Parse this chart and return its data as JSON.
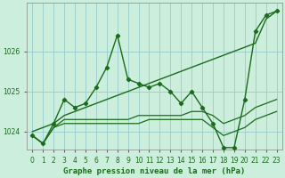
{
  "title": "Graphe pression niveau de la mer (hPa)",
  "background_color": "#cceedd",
  "grid_color": "#99cccc",
  "line_color": "#1a6b1a",
  "hours": [
    0,
    1,
    2,
    3,
    4,
    5,
    6,
    7,
    8,
    9,
    10,
    11,
    12,
    13,
    14,
    15,
    16,
    17,
    18,
    19,
    20,
    21,
    22,
    23
  ],
  "line_zigzag": [
    1023.9,
    1023.7,
    1024.2,
    1024.8,
    1024.6,
    1024.7,
    1025.1,
    1025.6,
    1026.4,
    1025.3,
    1025.2,
    1025.1,
    1025.2,
    1025.0,
    1024.7,
    1025.0,
    1024.6,
    1024.2,
    1023.6,
    1023.6,
    1024.8,
    1026.5,
    1026.9,
    1027.0
  ],
  "line_straight": [
    1024.0,
    1024.1,
    1024.2,
    1024.4,
    1024.5,
    1024.6,
    1024.7,
    1024.8,
    1024.9,
    1025.0,
    1025.1,
    1025.2,
    1025.3,
    1025.4,
    1025.5,
    1025.6,
    1025.7,
    1025.8,
    1025.9,
    1026.0,
    1026.1,
    1026.2,
    1026.8,
    1027.0
  ],
  "line_flat1": [
    1023.9,
    1023.7,
    1024.1,
    1024.2,
    1024.2,
    1024.2,
    1024.2,
    1024.2,
    1024.2,
    1024.2,
    1024.2,
    1024.3,
    1024.3,
    1024.3,
    1024.3,
    1024.3,
    1024.3,
    1024.1,
    1023.9,
    1024.0,
    1024.1,
    1024.3,
    1024.4,
    1024.5
  ],
  "line_flat2": [
    1023.9,
    1023.7,
    1024.1,
    1024.3,
    1024.3,
    1024.3,
    1024.3,
    1024.3,
    1024.3,
    1024.3,
    1024.4,
    1024.4,
    1024.4,
    1024.4,
    1024.4,
    1024.5,
    1024.5,
    1024.4,
    1024.2,
    1024.3,
    1024.4,
    1024.6,
    1024.7,
    1024.8
  ],
  "ylim_min": 1023.55,
  "ylim_max": 1027.2,
  "yticks": [
    1024,
    1025,
    1026
  ],
  "title_fontsize": 6.5,
  "tick_fontsize": 5.5
}
